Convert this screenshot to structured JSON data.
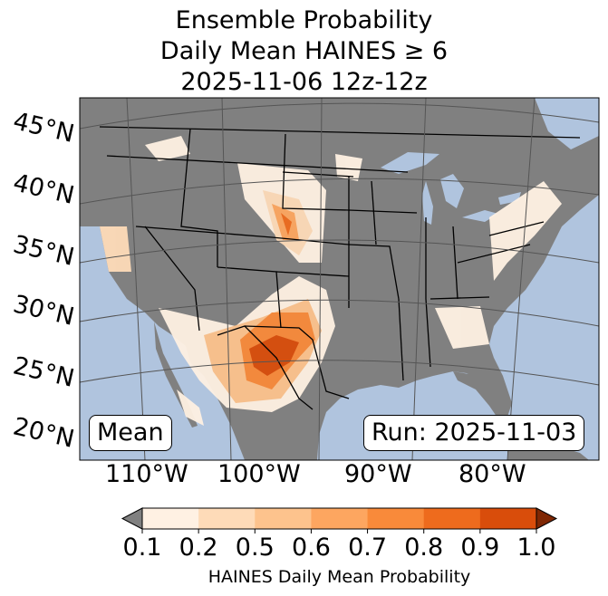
{
  "title": {
    "line1": "Ensemble Probability",
    "line2": "Daily Mean HAINES ≥ 6",
    "line3": "2025-11-06 12z-12z"
  },
  "map": {
    "lat_labels": [
      "45°N",
      "40°N",
      "35°N",
      "30°N",
      "25°N",
      "20°N"
    ],
    "lon_labels": [
      "110°W",
      "100°W",
      "90°W",
      "80°W"
    ],
    "left_tag": "Mean",
    "right_tag": "Run: 2025-11-03",
    "colors": {
      "ocean": "#b0c4de",
      "land": "#808080",
      "border": "#000000",
      "graticule": "#555555"
    }
  },
  "colorbar": {
    "ticks": [
      "0.1",
      "0.2",
      "0.5",
      "0.6",
      "0.7",
      "0.8",
      "0.9",
      "1.0"
    ],
    "colors": [
      "#fff1e3",
      "#fedbb8",
      "#fdc38d",
      "#fda660",
      "#f98a3a",
      "#ee6b1d",
      "#d94d0b"
    ],
    "under_color": "#808080",
    "over_color": "#7f2704",
    "label": "HAINES Daily Mean Probability"
  }
}
